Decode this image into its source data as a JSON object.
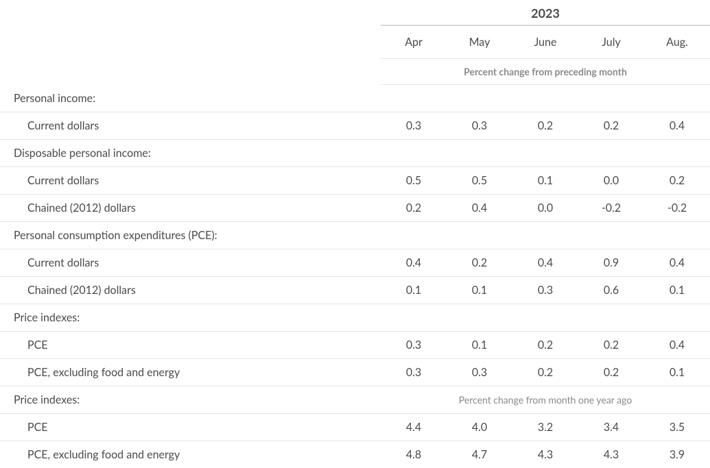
{
  "header": {
    "year": "2023",
    "months": [
      "Apr",
      "May",
      "June",
      "July",
      "Aug."
    ],
    "subhead1": "Percent change from preceding month",
    "subhead2": "Percent change from month one year ago"
  },
  "rows": [
    {
      "type": "section",
      "label": "Personal income:"
    },
    {
      "type": "data",
      "indent": true,
      "label": "Current dollars",
      "values": [
        "0.3",
        "0.3",
        "0.2",
        "0.2",
        "0.4"
      ]
    },
    {
      "type": "section",
      "label": "Disposable personal income:"
    },
    {
      "type": "data",
      "indent": true,
      "label": "Current dollars",
      "values": [
        "0.5",
        "0.5",
        "0.1",
        "0.0",
        "0.2"
      ]
    },
    {
      "type": "data",
      "indent": true,
      "label": "Chained (2012) dollars",
      "values": [
        "0.2",
        "0.4",
        "0.0",
        "-0.2",
        "-0.2"
      ]
    },
    {
      "type": "section",
      "label": "Personal consumption expenditures (PCE):"
    },
    {
      "type": "data",
      "indent": true,
      "label": "Current dollars",
      "values": [
        "0.4",
        "0.2",
        "0.4",
        "0.9",
        "0.4"
      ]
    },
    {
      "type": "data",
      "indent": true,
      "label": "Chained (2012) dollars",
      "values": [
        "0.1",
        "0.1",
        "0.3",
        "0.6",
        "0.1"
      ]
    },
    {
      "type": "section",
      "label": "Price indexes:"
    },
    {
      "type": "data",
      "indent": true,
      "label": "PCE",
      "values": [
        "0.3",
        "0.1",
        "0.2",
        "0.2",
        "0.4"
      ]
    },
    {
      "type": "data",
      "indent": true,
      "label": "PCE, excluding food and energy",
      "values": [
        "0.3",
        "0.3",
        "0.2",
        "0.2",
        "0.1"
      ]
    },
    {
      "type": "section-with-note",
      "label": "Price indexes:",
      "note_key": "subhead2"
    },
    {
      "type": "data",
      "indent": true,
      "label": "PCE",
      "values": [
        "4.4",
        "4.0",
        "3.2",
        "3.4",
        "3.5"
      ]
    },
    {
      "type": "data",
      "indent": true,
      "label": "PCE, excluding food and energy",
      "values": [
        "4.8",
        "4.7",
        "4.3",
        "4.3",
        "3.9"
      ],
      "last": true
    }
  ],
  "style": {
    "text_color": "#4a4a4a",
    "muted_color": "#8a8a8a",
    "border_color": "#e5e5e5",
    "header_border_color": "#d9d9d9",
    "background": "#ffffff",
    "font_size_body": 16,
    "font_size_sub": 14,
    "font_size_year": 18
  }
}
